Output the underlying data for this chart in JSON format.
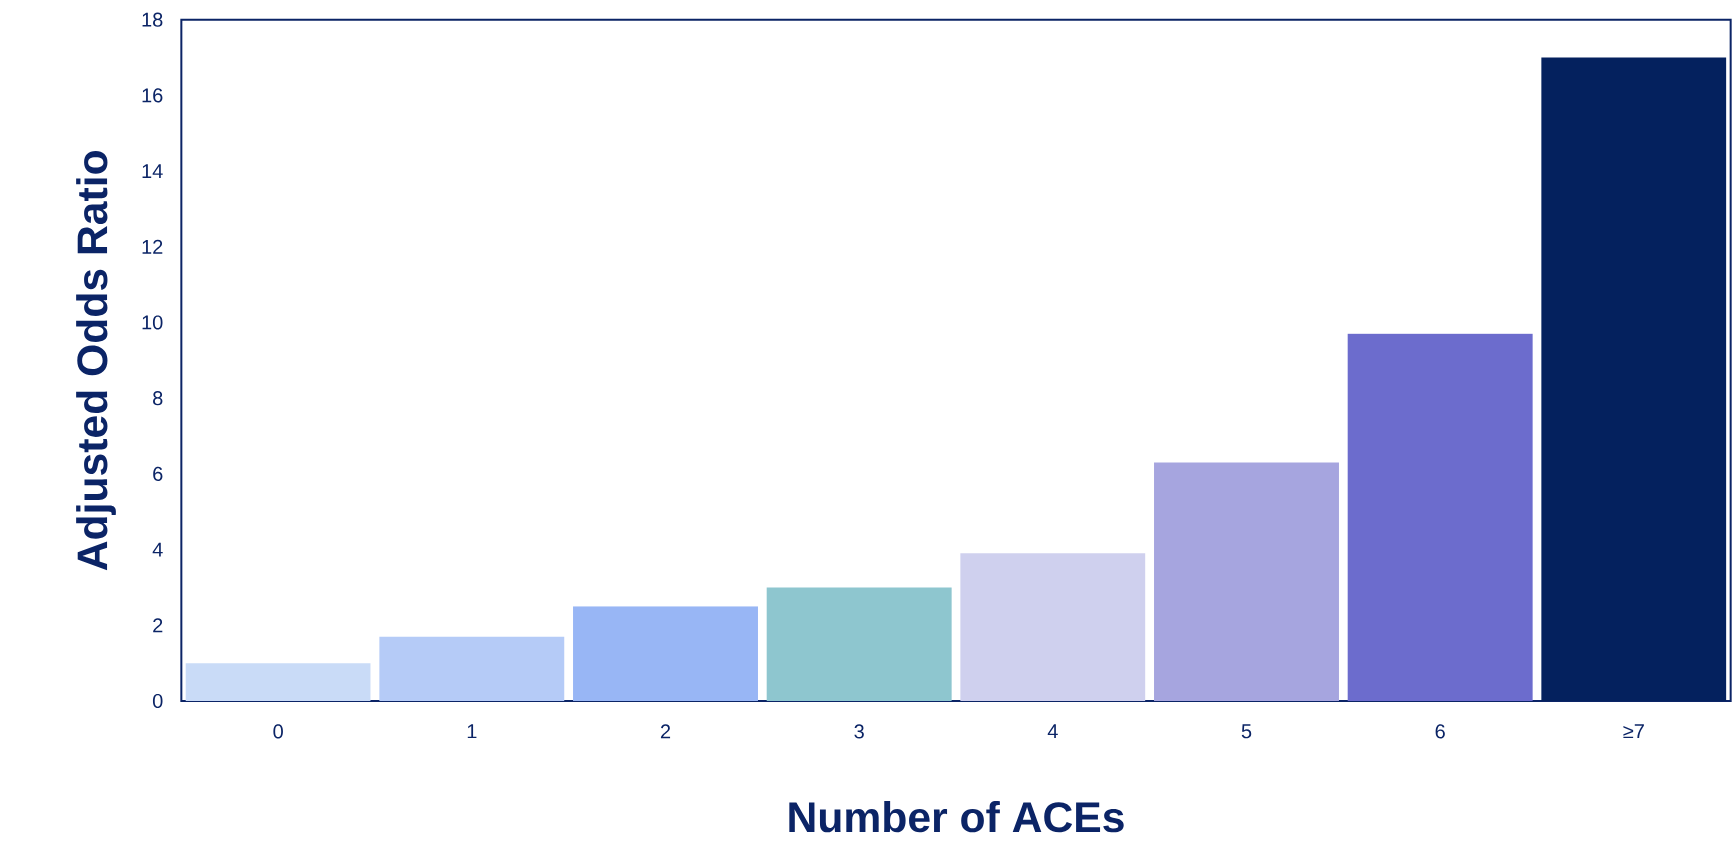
{
  "chart_data": {
    "type": "bar",
    "xlabel": "Number of ACEs",
    "ylabel": "Adjusted Odds Ratio",
    "categories": [
      "0",
      "1",
      "2",
      "3",
      "4",
      "5",
      "6",
      "≥7"
    ],
    "values": [
      1.0,
      1.7,
      2.5,
      3.0,
      3.9,
      6.3,
      9.7,
      17.0
    ],
    "colors": [
      "#c9dbf7",
      "#b5cbf7",
      "#98b6f5",
      "#8ec6cf",
      "#cfd0ee",
      "#a6a5df",
      "#6c6ccd",
      "#04215e"
    ],
    "ylim": [
      0,
      18
    ],
    "yticks": [
      0,
      2,
      4,
      6,
      8,
      10,
      12,
      14,
      16,
      18
    ]
  }
}
